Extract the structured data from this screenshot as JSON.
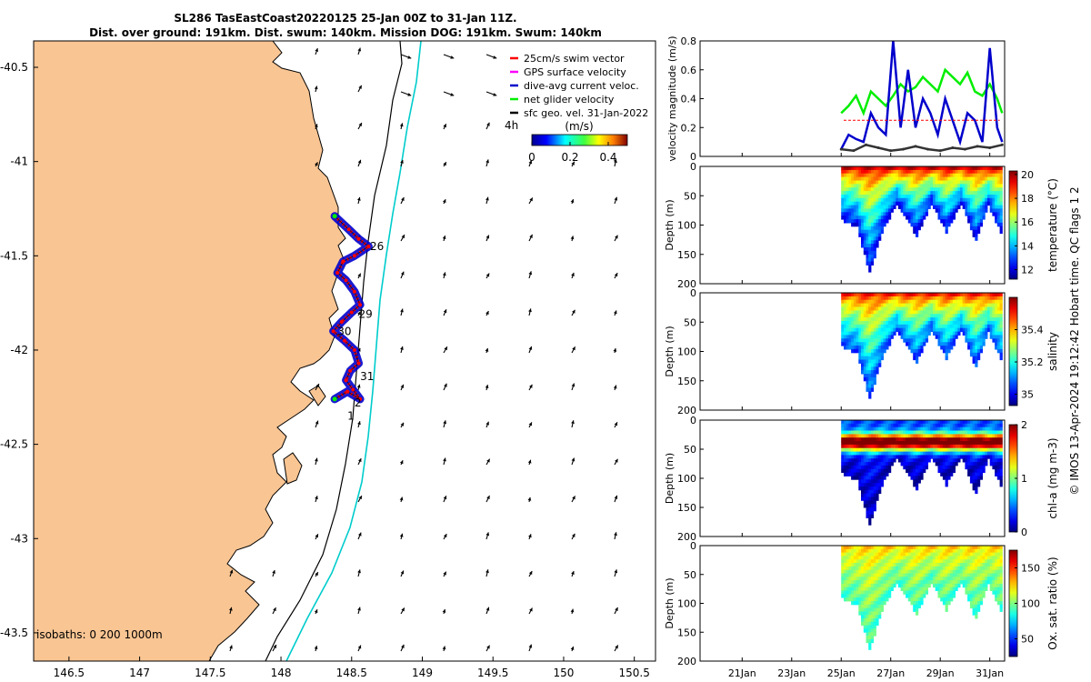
{
  "title": {
    "line1": "SL286 TasEastCoast20220125 25-Jan 00Z to 31-Jan 11Z.",
    "line2": "Dist. over ground: 191km. Dist. swum: 140km. Mission DOG: 191km. Swum: 140km"
  },
  "footer_note": "© IMOS 13-Apr-2024 19:12:42 Hobart time. QC flags 1 2",
  "chart_data": [
    {
      "type": "map",
      "xticks": [
        146.5,
        147,
        147.5,
        148,
        148.5,
        149,
        149.5,
        150,
        150.5
      ],
      "yticks": [
        -40.5,
        -41,
        -41.5,
        -42,
        -42.5,
        -43,
        -43.5
      ],
      "xlim": [
        146.25,
        150.65
      ],
      "ylim": [
        -43.65,
        -40.36
      ],
      "legend": {
        "position": "top-right",
        "items": [
          {
            "label": "25cm/s swim vector",
            "color": "#ff0000"
          },
          {
            "label": "GPS surface velocity",
            "color": "#ff00ff"
          },
          {
            "label": "dive-avg current veloc.",
            "color": "#0000cc"
          },
          {
            "label": "net glider velocity",
            "color": "#00ee00"
          },
          {
            "label": "sfc geo. vel. 31-Jan-2022",
            "color": "#000000"
          }
        ]
      },
      "colorbar": {
        "label": "(m/s)",
        "ticks": [
          "0",
          "0.2",
          "0.4"
        ],
        "corner_label": "4h",
        "range": [
          0,
          0.5
        ]
      },
      "isobaths_label": "isobaths: 0   200  1000m",
      "day_labels": [
        {
          "text": "26",
          "lon": 148.63,
          "lat": -41.47
        },
        {
          "text": "29",
          "lon": 148.55,
          "lat": -41.83
        },
        {
          "text": "30",
          "lon": 148.4,
          "lat": -41.92
        },
        {
          "text": "31",
          "lon": 148.56,
          "lat": -42.16
        },
        {
          "text": "2",
          "lon": 148.52,
          "lat": -42.3
        },
        {
          "text": "1",
          "lon": 148.47,
          "lat": -42.37
        }
      ],
      "track": [
        [
          148.38,
          -41.29
        ],
        [
          148.48,
          -41.36
        ],
        [
          148.55,
          -41.41
        ],
        [
          148.62,
          -41.45
        ],
        [
          148.52,
          -41.5
        ],
        [
          148.44,
          -41.53
        ],
        [
          148.4,
          -41.59
        ],
        [
          148.46,
          -41.63
        ],
        [
          148.52,
          -41.69
        ],
        [
          148.56,
          -41.76
        ],
        [
          148.5,
          -41.8
        ],
        [
          148.43,
          -41.85
        ],
        [
          148.37,
          -41.9
        ],
        [
          148.45,
          -41.95
        ],
        [
          148.52,
          -42.0
        ],
        [
          148.55,
          -42.07
        ],
        [
          148.49,
          -42.11
        ],
        [
          148.46,
          -42.16
        ],
        [
          148.51,
          -42.21
        ],
        [
          148.56,
          -42.26
        ],
        [
          148.47,
          -42.22
        ],
        [
          148.38,
          -42.26
        ]
      ]
    },
    {
      "type": "line",
      "ylabel": "velocity magnitude (m/s)",
      "ylim": [
        0,
        0.8
      ],
      "yticks": [
        0,
        0.2,
        0.4,
        0.6,
        0.8
      ],
      "series": [
        {
          "color": "#00ee00",
          "x": [
            25.0,
            25.3,
            25.6,
            25.9,
            26.2,
            26.5,
            26.8,
            27.1,
            27.4,
            27.7,
            28.0,
            28.3,
            28.6,
            28.9,
            29.2,
            29.5,
            29.8,
            30.1,
            30.4,
            30.7,
            31.0,
            31.3,
            31.5
          ],
          "values": [
            0.3,
            0.35,
            0.42,
            0.3,
            0.45,
            0.4,
            0.35,
            0.42,
            0.5,
            0.45,
            0.48,
            0.55,
            0.5,
            0.45,
            0.6,
            0.55,
            0.5,
            0.58,
            0.45,
            0.42,
            0.5,
            0.4,
            0.3
          ]
        },
        {
          "color": "#0000cc",
          "x": [
            25.0,
            25.3,
            25.6,
            25.9,
            26.2,
            26.5,
            26.8,
            27.1,
            27.4,
            27.7,
            28.0,
            28.3,
            28.6,
            28.9,
            29.2,
            29.5,
            29.8,
            30.1,
            30.4,
            30.7,
            31.0,
            31.3,
            31.5
          ],
          "values": [
            0.05,
            0.15,
            0.12,
            0.1,
            0.3,
            0.2,
            0.15,
            0.8,
            0.2,
            0.6,
            0.2,
            0.4,
            0.3,
            0.15,
            0.4,
            0.25,
            0.1,
            0.3,
            0.25,
            0.1,
            0.75,
            0.2,
            0.1
          ]
        },
        {
          "color": "#333333",
          "x": [
            25.0,
            25.5,
            26.0,
            26.5,
            27.0,
            27.5,
            28.0,
            28.5,
            29.0,
            29.5,
            30.0,
            30.5,
            31.0,
            31.5
          ],
          "values": [
            0.05,
            0.04,
            0.08,
            0.06,
            0.04,
            0.05,
            0.07,
            0.05,
            0.04,
            0.06,
            0.05,
            0.07,
            0.06,
            0.08
          ]
        },
        {
          "color": "#ff0000",
          "x": [
            25.1,
            31.4
          ],
          "values": [
            0.25,
            0.25
          ]
        }
      ]
    },
    {
      "type": "heatmap",
      "ylabel": "Depth (m)",
      "cblabel": "temperature (°C)",
      "ylim": [
        200,
        0
      ],
      "yticks": [
        0,
        50,
        100,
        150,
        200
      ],
      "cbticks": [
        12,
        14,
        16,
        18,
        20
      ],
      "cbrange": [
        11.2,
        20.3
      ],
      "surface_value": 19.5,
      "deep_value": 12.2,
      "max_depth_by_day": [
        [
          25.0,
          90
        ],
        [
          25.6,
          100
        ],
        [
          26.1,
          180
        ],
        [
          26.6,
          110
        ],
        [
          27.2,
          60
        ],
        [
          28.0,
          115
        ],
        [
          28.6,
          60
        ],
        [
          29.2,
          110
        ],
        [
          29.8,
          60
        ],
        [
          30.4,
          125
        ],
        [
          30.9,
          65
        ],
        [
          31.5,
          120
        ]
      ]
    },
    {
      "type": "heatmap",
      "ylabel": "Depth (m)",
      "cblabel": "salinity",
      "ylim": [
        200,
        0
      ],
      "yticks": [
        0,
        50,
        100,
        150,
        200
      ],
      "cbticks": [
        35,
        35.2,
        35.4
      ],
      "cbrange": [
        34.93,
        35.6
      ],
      "surface_value": 35.5,
      "deep_value": 35.05,
      "max_depth_by_day": [
        [
          25.0,
          90
        ],
        [
          25.6,
          100
        ],
        [
          26.1,
          180
        ],
        [
          26.6,
          110
        ],
        [
          27.2,
          60
        ],
        [
          28.0,
          115
        ],
        [
          28.6,
          60
        ],
        [
          29.2,
          110
        ],
        [
          29.8,
          60
        ],
        [
          30.4,
          125
        ],
        [
          30.9,
          65
        ],
        [
          31.5,
          120
        ]
      ]
    },
    {
      "type": "heatmap",
      "ylabel": "Depth (m)",
      "cblabel": "chl-a (mg m-3)",
      "ylim": [
        200,
        0
      ],
      "yticks": [
        0,
        50,
        100,
        150,
        200
      ],
      "cbticks": [
        0,
        1,
        2
      ],
      "cbrange": [
        0,
        2
      ],
      "surface_value": 1.0,
      "deep_value": 0.1,
      "max_depth_by_day": [
        [
          25.0,
          90
        ],
        [
          25.6,
          100
        ],
        [
          26.1,
          180
        ],
        [
          26.6,
          110
        ],
        [
          27.2,
          60
        ],
        [
          28.0,
          115
        ],
        [
          28.6,
          60
        ],
        [
          29.2,
          110
        ],
        [
          29.8,
          60
        ],
        [
          30.4,
          125
        ],
        [
          30.9,
          65
        ],
        [
          31.5,
          120
        ]
      ]
    },
    {
      "type": "heatmap",
      "ylabel": "Depth (m)",
      "cblabel": "Ox. sat. ratio (%)",
      "ylim": [
        200,
        0
      ],
      "yticks": [
        0,
        50,
        100,
        150,
        200
      ],
      "cbticks": [
        50,
        100,
        150
      ],
      "cbrange": [
        25,
        175
      ],
      "surface_value": 125,
      "deep_value": 90,
      "max_depth_by_day": [
        [
          25.0,
          90
        ],
        [
          25.6,
          100
        ],
        [
          26.1,
          180
        ],
        [
          26.6,
          110
        ],
        [
          27.2,
          60
        ],
        [
          28.0,
          115
        ],
        [
          28.6,
          60
        ],
        [
          29.2,
          110
        ],
        [
          29.8,
          60
        ],
        [
          30.4,
          125
        ],
        [
          30.9,
          65
        ],
        [
          31.5,
          120
        ]
      ],
      "xticks": [
        "21Jan",
        "23Jan",
        "25Jan",
        "27Jan",
        "29Jan",
        "31Jan"
      ],
      "xtick_days": [
        21,
        23,
        25,
        27,
        29,
        31
      ],
      "xlim": [
        19.3,
        31.6
      ]
    }
  ]
}
